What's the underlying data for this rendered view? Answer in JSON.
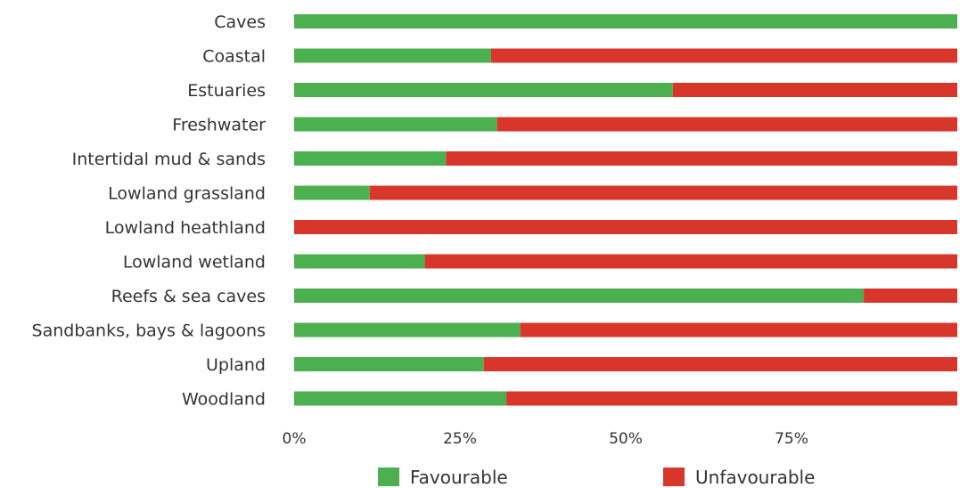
{
  "chart_data": {
    "type": "bar",
    "orientation": "horizontal",
    "stacked": true,
    "categories": [
      "Caves",
      "Coastal",
      "Estuaries",
      "Freshwater",
      "Intertidal mud & sands",
      "Lowland grassland",
      "Lowland heathland",
      "Lowland wetland",
      "Reefs & sea caves",
      "Sandbanks, bays & lagoons",
      "Upland",
      "Woodland"
    ],
    "series": [
      {
        "name": "Favourable",
        "color": "#4caf50",
        "values": [
          100,
          29.7,
          57.1,
          30.6,
          22.9,
          11.4,
          0,
          19.7,
          85.9,
          34.1,
          28.6,
          32
        ]
      },
      {
        "name": "Unfavourable",
        "color": "#d9362b",
        "values": [
          0,
          70.3,
          42.9,
          69.4,
          77.1,
          88.6,
          100,
          80.3,
          14.1,
          65.9,
          71.4,
          68
        ]
      }
    ],
    "xticks": [
      {
        "value": 0,
        "label": "0%"
      },
      {
        "value": 25,
        "label": "25%"
      },
      {
        "value": 50,
        "label": "50%"
      },
      {
        "value": 75,
        "label": "75%"
      }
    ],
    "xlim": [
      0,
      100
    ],
    "grid": false,
    "legend_position": "bottom-center"
  }
}
